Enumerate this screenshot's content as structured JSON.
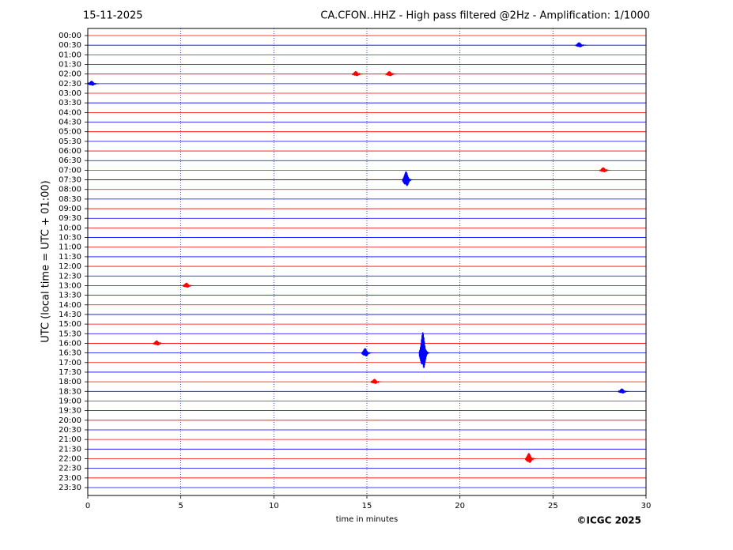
{
  "chart_data": {
    "type": "helicorder",
    "date": "15-11-2025",
    "title": "CA.CFON..HHZ - High pass filtered @2Hz - Amplification: 1/1000",
    "xlabel": "time in minutes",
    "ylabel": "UTC (local time = UTC + 01:00)",
    "copyright": "©ICGC 2025",
    "rows": [
      "00:00",
      "00:30",
      "01:00",
      "01:30",
      "02:00",
      "02:30",
      "03:00",
      "03:30",
      "04:00",
      "04:30",
      "05:00",
      "05:30",
      "06:00",
      "06:30",
      "07:00",
      "07:30",
      "08:00",
      "08:30",
      "09:00",
      "09:30",
      "10:00",
      "10:30",
      "11:00",
      "11:30",
      "12:00",
      "12:30",
      "13:00",
      "13:30",
      "14:00",
      "14:30",
      "15:00",
      "15:30",
      "16:00",
      "16:30",
      "17:00",
      "17:30",
      "18:00",
      "18:30",
      "19:00",
      "19:30",
      "20:00",
      "20:30",
      "21:00",
      "21:30",
      "22:00",
      "22:30",
      "23:00",
      "23:30"
    ],
    "colors": [
      "#ff0000",
      "#0000ff"
    ],
    "xlim": [
      0,
      30
    ],
    "xticks": [
      0,
      5,
      10,
      15,
      20,
      25,
      30
    ],
    "grid": true,
    "events": [
      {
        "row": 1,
        "x": 26.5,
        "amplitude": 0.3
      },
      {
        "row": 4,
        "x": 14.5,
        "amplitude": 0.3
      },
      {
        "row": 4,
        "x": 16.3,
        "amplitude": 0.3
      },
      {
        "row": 5,
        "x": 0.3,
        "amplitude": 0.3
      },
      {
        "row": 14,
        "x": 27.8,
        "amplitude": 0.3
      },
      {
        "row": 15,
        "x": 17.2,
        "amplitude": 0.9
      },
      {
        "row": 26,
        "x": 5.4,
        "amplitude": 0.3
      },
      {
        "row": 32,
        "x": 3.8,
        "amplitude": 0.3
      },
      {
        "row": 33,
        "x": 15.0,
        "amplitude": 0.5
      },
      {
        "row": 33,
        "x": 18.1,
        "amplitude": 2.2
      },
      {
        "row": 36,
        "x": 15.5,
        "amplitude": 0.3
      },
      {
        "row": 37,
        "x": 28.8,
        "amplitude": 0.3
      },
      {
        "row": 44,
        "x": 23.8,
        "amplitude": 0.6
      }
    ]
  }
}
